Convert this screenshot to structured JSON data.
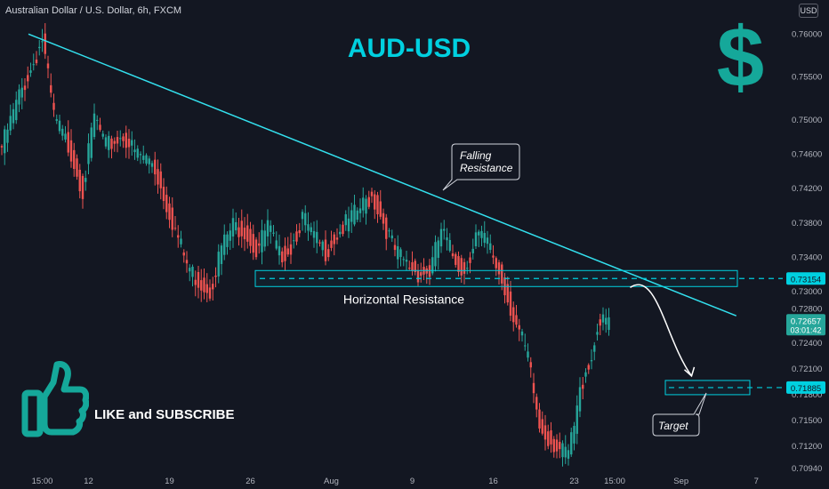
{
  "header": {
    "symbol_title": "Australian Dollar / U.S. Dollar, 6h, FXCM",
    "currency_badge": "USD"
  },
  "overlay": {
    "pair_title": "AUD-USD",
    "dollar_sign": "$",
    "like_text": "LIKE and SUBSCRIBE",
    "thumb_icon": "thumbs-up-icon",
    "colors": {
      "accent": "#00d0e0",
      "dollar": "#15a89a",
      "bull": "#26a69a",
      "bear": "#ef5350",
      "trendline": "#33e0ee",
      "background": "#131722"
    }
  },
  "price_labels": {
    "horizontal_level": "0.73154",
    "current_price": "0.72657",
    "countdown": "03:01:42",
    "target_level": "0.71885"
  },
  "chart_data": {
    "type": "candlestick",
    "title": "Australian Dollar / U.S. Dollar, 6h, FXCM",
    "xlabel": "",
    "ylabel": "",
    "ylim": [
      0.7087,
      0.7622
    ],
    "grid": false,
    "y_ticks": [
      "0.76000",
      "0.75500",
      "0.75000",
      "0.74600",
      "0.74200",
      "0.73800",
      "0.73400",
      "0.73000",
      "0.72800",
      "0.72400",
      "0.72100",
      "0.71800",
      "0.71500",
      "0.71200",
      "0.70940"
    ],
    "x_ticks": [
      {
        "label": "15:00",
        "index": 14
      },
      {
        "label": "12",
        "index": 30
      },
      {
        "label": "19",
        "index": 58
      },
      {
        "label": "26",
        "index": 86
      },
      {
        "label": "Aug",
        "index": 114
      },
      {
        "label": "9",
        "index": 142
      },
      {
        "label": "16",
        "index": 170
      },
      {
        "label": "23",
        "index": 198
      },
      {
        "label": "15:00",
        "index": 212
      },
      {
        "label": "Sep",
        "index": 235
      },
      {
        "label": "7",
        "index": 261
      }
    ],
    "close_anchors": [
      [
        0,
        0.7468
      ],
      [
        6,
        0.7528
      ],
      [
        10,
        0.7558
      ],
      [
        14,
        0.7594
      ],
      [
        18,
        0.7504
      ],
      [
        24,
        0.7462
      ],
      [
        28,
        0.7418
      ],
      [
        32,
        0.7504
      ],
      [
        36,
        0.7468
      ],
      [
        42,
        0.7482
      ],
      [
        46,
        0.7462
      ],
      [
        52,
        0.7452
      ],
      [
        56,
        0.7412
      ],
      [
        60,
        0.7372
      ],
      [
        64,
        0.7332
      ],
      [
        68,
        0.7312
      ],
      [
        72,
        0.7302
      ],
      [
        76,
        0.7352
      ],
      [
        80,
        0.7377
      ],
      [
        84,
        0.7372
      ],
      [
        88,
        0.7347
      ],
      [
        92,
        0.7377
      ],
      [
        96,
        0.7342
      ],
      [
        100,
        0.7352
      ],
      [
        104,
        0.7387
      ],
      [
        108,
        0.7362
      ],
      [
        112,
        0.7347
      ],
      [
        116,
        0.7367
      ],
      [
        120,
        0.7382
      ],
      [
        124,
        0.7397
      ],
      [
        128,
        0.7412
      ],
      [
        132,
        0.7382
      ],
      [
        136,
        0.7347
      ],
      [
        140,
        0.7332
      ],
      [
        144,
        0.7322
      ],
      [
        148,
        0.7322
      ],
      [
        152,
        0.7372
      ],
      [
        156,
        0.7342
      ],
      [
        160,
        0.7322
      ],
      [
        164,
        0.7367
      ],
      [
        168,
        0.7357
      ],
      [
        172,
        0.7322
      ],
      [
        176,
        0.7282
      ],
      [
        178,
        0.7262
      ],
      [
        182,
        0.7222
      ],
      [
        186,
        0.7142
      ],
      [
        190,
        0.7127
      ],
      [
        194,
        0.7112
      ],
      [
        196,
        0.7112
      ],
      [
        198,
        0.7142
      ],
      [
        200,
        0.7182
      ],
      [
        202,
        0.7212
      ],
      [
        204,
        0.7222
      ],
      [
        206,
        0.7262
      ],
      [
        208,
        0.7262
      ],
      [
        210,
        0.7267
      ]
    ],
    "trendline": [
      [
        0,
        0.76
      ],
      [
        251,
        0.7272
      ]
    ],
    "horizontal_resistance": 0.73154,
    "target_level": 0.71885,
    "projection": [
      [
        210,
        0.7305
      ],
      [
        230,
        0.7202
      ]
    ],
    "annotations": [
      {
        "text_lines": [
          "Falling",
          "Resistance"
        ]
      },
      {
        "text": "Horizontal Resistance"
      },
      {
        "text": "Target"
      }
    ]
  }
}
